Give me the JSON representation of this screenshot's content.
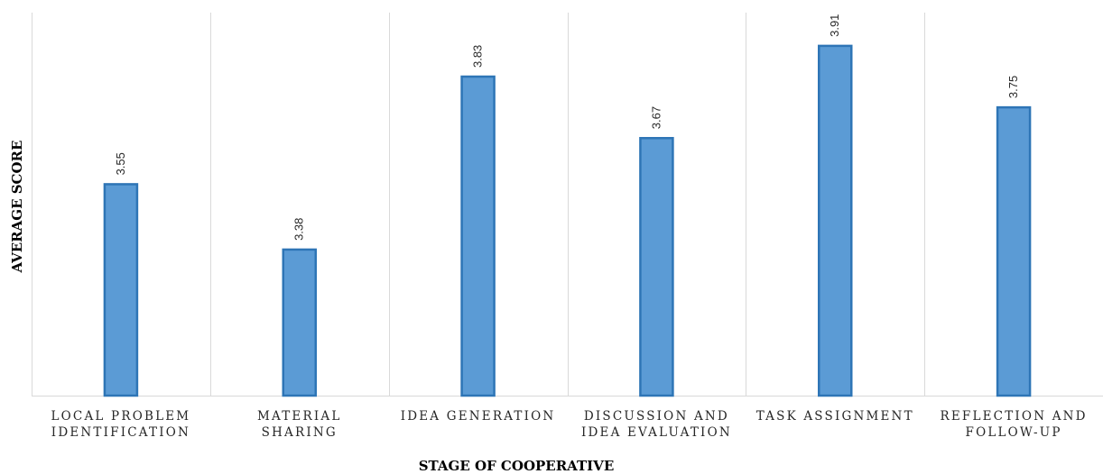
{
  "chart_data": {
    "type": "bar",
    "title": "",
    "xlabel": "STAGE OF COOPERATIVE",
    "ylabel": "AVERAGE SCORE",
    "categories": [
      [
        "LOCAL PROBLEM",
        "IDENTIFICATION"
      ],
      [
        "MATERIAL",
        "SHARING"
      ],
      [
        "IDEA GENERATION"
      ],
      [
        "DISCUSSION AND",
        "IDEA EVALUATION"
      ],
      [
        "TASK ASSIGNMENT"
      ],
      [
        "REFLECTION AND",
        "FOLLOW-UP"
      ]
    ],
    "values": [
      3.55,
      3.38,
      3.83,
      3.67,
      3.91,
      3.75
    ],
    "data_labels": [
      "3.55",
      "3.38",
      "3.83",
      "3.67",
      "3.91",
      "3.75"
    ],
    "ylim": [
      3.0,
      4.0
    ],
    "grid": "vertical category separators",
    "legend": "none",
    "colors": {
      "bar_fill": "#5b9bd5",
      "bar_edge": "#2e75b6",
      "grid": "#d9d9d9",
      "axis": "#d9d9d9"
    }
  }
}
